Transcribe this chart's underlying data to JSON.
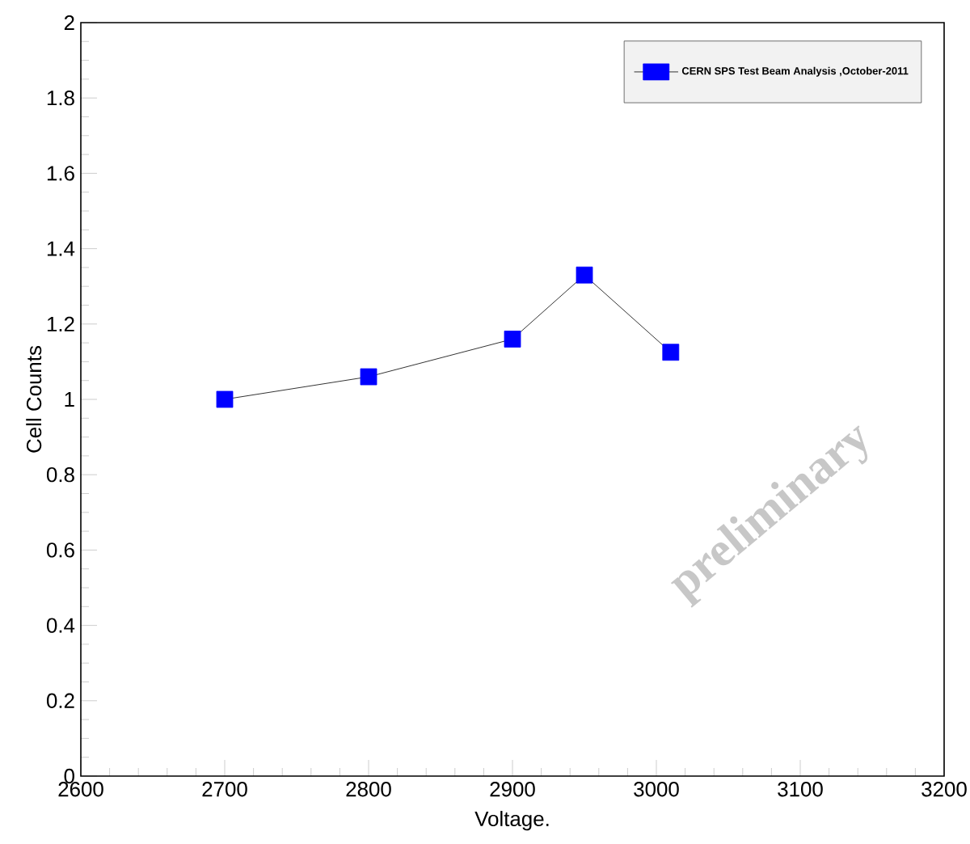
{
  "chart_data": {
    "type": "line",
    "xlabel": "Voltage.",
    "ylabel": "Cell Counts",
    "x": [
      2700,
      2800,
      2900,
      2950,
      3010
    ],
    "series": [
      {
        "name": "CERN SPS Test Beam Analysis ,October-2011",
        "color": "#0000ff",
        "values": [
          1.0,
          1.06,
          1.16,
          1.33,
          1.125
        ]
      }
    ],
    "xlim": [
      2600,
      3200
    ],
    "xticks": [
      2600,
      2700,
      2800,
      2900,
      3000,
      3100,
      3200
    ],
    "ylim": [
      0,
      2
    ],
    "yticks": [
      0,
      0.2,
      0.4,
      0.6,
      0.8,
      1,
      1.2,
      1.4,
      1.6,
      1.8,
      2
    ],
    "annotations": [
      "preliminary"
    ],
    "grid": false,
    "legend": "top right",
    "marker": "square",
    "line_style": "solid"
  }
}
